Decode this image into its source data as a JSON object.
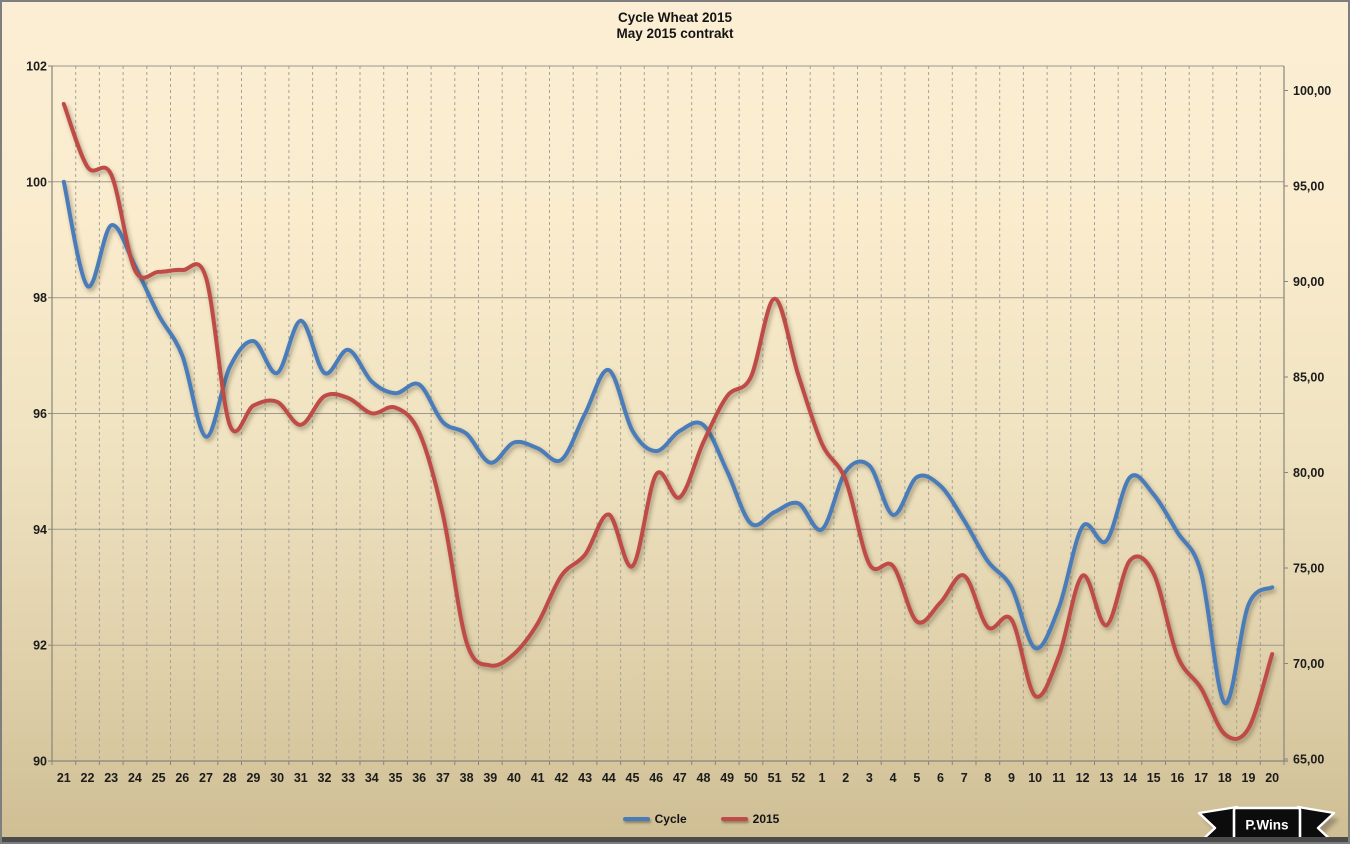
{
  "title": {
    "line1": "Cycle Wheat 2015",
    "line2": "May 2015 contrakt"
  },
  "logo": {
    "text": "P.Wins"
  },
  "colors": {
    "cycle_line": "#4a7cb8",
    "y2015_line": "#bf4b47",
    "gridline": "#9b998e",
    "dashed_gridline": "#a5a399",
    "axis_line": "#87857b",
    "background_top": "#fceed4",
    "background_bottom": "#cfbe94"
  },
  "chart_data": {
    "type": "line",
    "title": "Cycle Wheat 2015",
    "subtitle": "May 2015 contrakt",
    "smooth": true,
    "grid": {
      "horizontal": true,
      "vertical": "dashed"
    },
    "legend_position": "bottom",
    "categories": [
      "21",
      "22",
      "23",
      "24",
      "25",
      "26",
      "27",
      "28",
      "29",
      "30",
      "31",
      "32",
      "33",
      "34",
      "35",
      "36",
      "37",
      "38",
      "39",
      "40",
      "41",
      "42",
      "43",
      "44",
      "45",
      "46",
      "47",
      "48",
      "49",
      "50",
      "51",
      "52",
      "1",
      "2",
      "3",
      "4",
      "5",
      "6",
      "7",
      "8",
      "9",
      "10",
      "11",
      "12",
      "13",
      "14",
      "15",
      "16",
      "17",
      "18",
      "19",
      "20"
    ],
    "left_axis": {
      "min": 90,
      "max": 102,
      "step": 2,
      "ticks": [
        "102",
        "100",
        "98",
        "96",
        "94",
        "92",
        "90"
      ]
    },
    "right_axis": {
      "min": 65,
      "max": 100,
      "step": 5,
      "ticks": [
        "100,00",
        "95,00",
        "90,00",
        "85,00",
        "80,00",
        "75,00",
        "70,00",
        "65,00"
      ]
    },
    "series": [
      {
        "name": "Cycle",
        "axis": "left",
        "color": "#4a7cb8",
        "values": [
          100.0,
          98.2,
          99.25,
          98.55,
          97.7,
          97.0,
          95.6,
          96.8,
          97.25,
          96.7,
          97.6,
          96.7,
          97.1,
          96.55,
          96.35,
          96.5,
          95.85,
          95.65,
          95.15,
          95.5,
          95.4,
          95.2,
          96.0,
          96.75,
          95.7,
          95.35,
          95.7,
          95.8,
          95.0,
          94.1,
          94.3,
          94.45,
          94.0,
          95.0,
          95.1,
          94.25,
          94.9,
          94.75,
          94.15,
          93.45,
          93.0,
          91.95,
          92.65,
          94.05,
          93.8,
          94.9,
          94.6,
          93.95,
          93.25,
          91.0,
          92.7,
          93.0
        ]
      },
      {
        "name": "2015",
        "axis": "right",
        "color": "#bf4b47",
        "values": [
          99.3,
          96.0,
          95.6,
          90.6,
          90.5,
          90.6,
          90.2,
          82.5,
          83.5,
          83.7,
          82.5,
          84.0,
          83.9,
          83.1,
          83.4,
          82.1,
          77.8,
          71.1,
          69.9,
          70.5,
          72.1,
          74.6,
          75.7,
          77.8,
          75.1,
          79.9,
          78.7,
          81.6,
          84.0,
          85.0,
          89.1,
          85.1,
          81.5,
          79.6,
          75.2,
          75.1,
          72.2,
          73.2,
          74.6,
          71.9,
          72.3,
          68.3,
          70.4,
          74.6,
          72.0,
          75.4,
          74.7,
          70.4,
          68.7,
          66.3,
          66.6,
          70.5
        ]
      }
    ]
  }
}
